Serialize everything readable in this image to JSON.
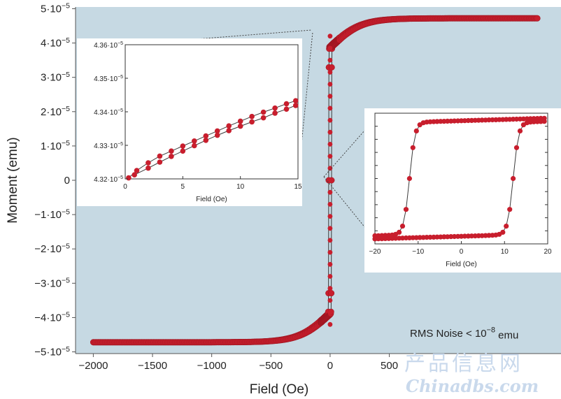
{
  "chart_data": [
    {
      "id": "main",
      "type": "scatter",
      "xlabel": "Field (Oe)",
      "ylabel": "Moment (emu)",
      "xlim": [
        -2150,
        1950
      ],
      "ylim": [
        -5.05e-05,
        5.05e-05
      ],
      "x_ticks": [
        -2000,
        -1500,
        -1000,
        -500,
        0,
        500
      ],
      "x_tick_labels": [
        "−2000",
        "−1500",
        "−1000",
        "−500",
        "0",
        "500"
      ],
      "y_ticks": [
        -5e-05,
        -4e-05,
        -3e-05,
        -2e-05,
        -1e-05,
        0,
        1e-05,
        2e-05,
        3e-05,
        4e-05,
        5e-05
      ],
      "y_tick_labels": [
        {
          "m": "−5·10",
          "e": "−5"
        },
        {
          "m": "−4·10",
          "e": "−5"
        },
        {
          "m": "−3·10",
          "e": "−5"
        },
        {
          "m": "−2·10",
          "e": "−5"
        },
        {
          "m": "−1·10",
          "e": "−5"
        },
        {
          "m": "0",
          "e": ""
        },
        {
          "m": "1·10",
          "e": "−5"
        },
        {
          "m": "2·10",
          "e": "−5"
        },
        {
          "m": "3·10",
          "e": "−5"
        },
        {
          "m": "4·10",
          "e": "−5"
        },
        {
          "m": "5·10",
          "e": "−5"
        }
      ],
      "grid": false,
      "background_color": "#c6d9e3",
      "marker_color": "#c81e2d",
      "line_color": "#3a3a3a",
      "saturation_moment": 4.72e-05,
      "coercive_field": 12,
      "x_range": [
        -2000,
        1750
      ],
      "annotation": {
        "text": "RMS Noise < 10",
        "sup": "−8",
        "suffix": " emu"
      }
    },
    {
      "id": "inset-top",
      "type": "scatter",
      "xlabel": "Field (Oe)",
      "xlim": [
        0,
        15
      ],
      "ylim": [
        4.32e-05,
        4.36e-05
      ],
      "x_ticks": [
        0,
        5,
        10,
        15
      ],
      "x_tick_labels": [
        "0",
        "5",
        "10",
        "15"
      ],
      "y_ticks": [
        4.32e-05,
        4.33e-05,
        4.34e-05,
        4.35e-05,
        4.36e-05
      ],
      "y_tick_labels": [
        {
          "m": "4.32·10",
          "e": "−5"
        },
        {
          "m": "4.33·10",
          "e": "−5"
        },
        {
          "m": "4.34·10",
          "e": "−5"
        },
        {
          "m": "4.35·10",
          "e": "−5"
        },
        {
          "m": "4.36·10",
          "e": "−5"
        }
      ],
      "series": [
        {
          "x": [
            0.3,
            1,
            2,
            3,
            4,
            5,
            6,
            7,
            8,
            9,
            10,
            11,
            12,
            13,
            14,
            14.8
          ],
          "y": [
            4.3203e-05,
            4.3225e-05,
            4.3248e-05,
            4.3268e-05,
            4.3283e-05,
            4.3298e-05,
            4.3313e-05,
            4.3328e-05,
            4.3343e-05,
            4.3358e-05,
            4.3372e-05,
            4.3386e-05,
            4.3399e-05,
            4.3411e-05,
            4.3424e-05,
            4.3433e-05
          ]
        },
        {
          "x": [
            0.8,
            2,
            3,
            4,
            5,
            6,
            7,
            8,
            9,
            10,
            11,
            12,
            13,
            14,
            14.8
          ],
          "y": [
            4.3212e-05,
            4.3232e-05,
            4.325e-05,
            4.3267e-05,
            4.3283e-05,
            4.3299e-05,
            4.3315e-05,
            4.333e-05,
            4.3344e-05,
            4.3357e-05,
            4.337e-05,
            4.3382e-05,
            4.3396e-05,
            4.3408e-05,
            4.3419e-05
          ]
        }
      ]
    },
    {
      "id": "inset-right",
      "type": "scatter",
      "xlabel": "Field (Oe)",
      "xlim": [
        -20,
        20
      ],
      "ylim": [
        -1,
        1
      ],
      "x_ticks": [
        -20,
        -10,
        0,
        10,
        20
      ],
      "x_tick_labels": [
        "−20",
        "−10",
        "0",
        "10",
        "20"
      ]
    }
  ],
  "watermark": {
    "cn": "产品信息网",
    "en": "Chinadbs.com"
  }
}
